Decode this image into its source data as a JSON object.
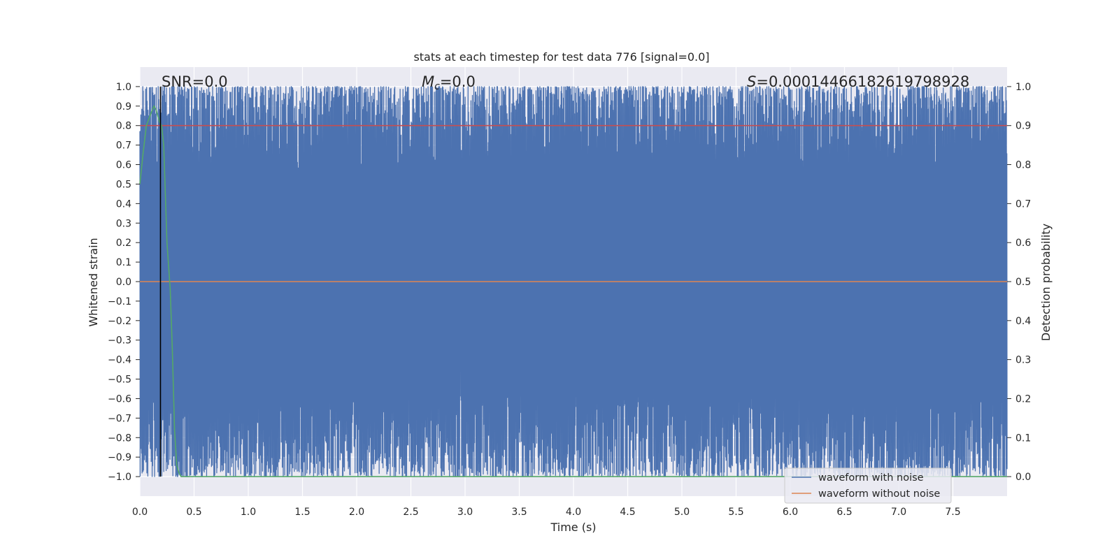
{
  "chart_data": {
    "type": "line",
    "title": "stats at each timestep for test data 776 [signal=0.0]",
    "xlabel": "Time (s)",
    "ylabel": "Whitened strain",
    "y2label": "Detection probability",
    "xlim": [
      0.0,
      8.0
    ],
    "ylim": [
      -1.1,
      1.1
    ],
    "y2lim": [
      -0.05,
      1.05
    ],
    "x_ticks": [
      "0.0",
      "0.5",
      "1.0",
      "1.5",
      "2.0",
      "2.5",
      "3.0",
      "3.5",
      "4.0",
      "4.5",
      "5.0",
      "5.5",
      "6.0",
      "6.5",
      "7.0",
      "7.5"
    ],
    "y_ticks": [
      "1.0",
      "0.9",
      "0.8",
      "0.7",
      "0.6",
      "0.5",
      "0.4",
      "0.3",
      "0.2",
      "0.1",
      "0.0",
      "−0.1",
      "−0.2",
      "−0.3",
      "−0.4",
      "−0.5",
      "−0.6",
      "−0.7",
      "−0.8",
      "−0.9",
      "−1.0"
    ],
    "y2_ticks": [
      "1.0",
      "0.9",
      "0.8",
      "0.7",
      "0.6",
      "0.5",
      "0.4",
      "0.3",
      "0.2",
      "0.1",
      "0.0"
    ],
    "grid": true,
    "legend_position": "lower-right",
    "annotations": {
      "snr": "SNR=0.0",
      "mc_symbol": "M",
      "mc_sub": "c",
      "mc_value": "=0.0",
      "s_symbol": "S",
      "s_value": "=0.00014466182619798928"
    },
    "series": [
      {
        "name": "waveform with noise",
        "color": "#4c72b0",
        "kind": "dense noise",
        "range": [
          -1.0,
          1.0
        ]
      },
      {
        "name": "waveform without noise",
        "color": "#dd8452",
        "x": [
          0.0,
          8.0
        ],
        "y": [
          0.0,
          0.0
        ]
      },
      {
        "color": "#55a868",
        "axis": "right",
        "x": [
          0.0,
          0.03,
          0.06,
          0.1,
          0.13,
          0.15,
          0.18,
          0.2,
          0.22,
          0.25,
          0.28,
          0.3,
          0.32,
          0.34,
          0.36,
          0.38,
          0.4,
          0.5,
          1.0,
          8.0
        ],
        "y": [
          0.75,
          0.83,
          0.9,
          0.93,
          0.95,
          0.94,
          0.91,
          0.9,
          0.85,
          0.6,
          0.48,
          0.32,
          0.12,
          0.03,
          0.01,
          0.0,
          0.0,
          0.0,
          0.0,
          0.0
        ]
      }
    ],
    "threshold_line": {
      "axis": "right",
      "value": 0.9,
      "color": "#c44e52"
    },
    "vertical_marker": {
      "x": 0.19,
      "color": "#000000"
    }
  }
}
